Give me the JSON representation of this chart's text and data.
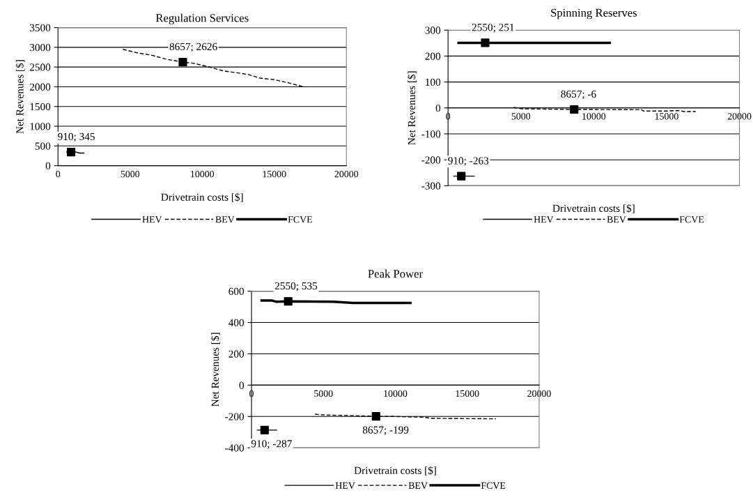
{
  "chart_data": [
    {
      "type": "line",
      "title": "Regulation Services",
      "xlabel": "Drivetrain costs [$]",
      "ylabel": "Net Revenues [$]",
      "xlim": [
        0,
        20000
      ],
      "xticks": [
        0,
        5000,
        10000,
        15000,
        20000
      ],
      "ylim": [
        0,
        3500
      ],
      "yticks": [
        0,
        500,
        1000,
        1500,
        2000,
        2500,
        3000,
        3500
      ],
      "grid": "y",
      "legend": "bottom",
      "series": [
        {
          "name": "HEV",
          "color": "#000000",
          "line_style": "solid",
          "x": [
            600,
            910,
            1200,
            1500,
            1800
          ],
          "values": [
            345,
            345,
            350,
            320,
            320
          ]
        },
        {
          "name": "BEV",
          "color": "#000000",
          "line_style": "dashed",
          "x": [
            4500,
            5500,
            6500,
            7500,
            8657,
            9500,
            10500,
            11500,
            12500,
            13200,
            14000,
            15000,
            16000,
            17000
          ],
          "values": [
            2950,
            2860,
            2800,
            2700,
            2626,
            2590,
            2500,
            2400,
            2350,
            2310,
            2220,
            2180,
            2100,
            2000
          ]
        },
        {
          "name": "FCVE",
          "color": "#000000",
          "line_style": "solid"
        },
        {
          "type": "scatter",
          "marker": "square",
          "color": "#000000",
          "x": [
            910,
            8657
          ],
          "values": [
            345,
            2626
          ]
        }
      ],
      "annotations": [
        {
          "text": "910; 345",
          "x": 910,
          "y": 345
        },
        {
          "text": "8657; 2626",
          "x": 8657,
          "y": 2626
        }
      ]
    },
    {
      "type": "line",
      "title": "Spinning Reserves",
      "xlabel": "Drivetrain costs [$]",
      "ylabel": "Net Revenues [$]",
      "xlim": [
        0,
        20000
      ],
      "xticks": [
        0,
        5000,
        10000,
        15000,
        20000
      ],
      "ylim": [
        -300,
        300
      ],
      "yticks": [
        -300,
        -200,
        -100,
        0,
        100,
        200,
        300
      ],
      "grid": "y",
      "legend": "bottom",
      "series": [
        {
          "name": "HEV",
          "color": "#000000",
          "line_style": "solid",
          "x": [
            400,
            910,
            1800
          ],
          "values": [
            -263,
            -263,
            -263
          ]
        },
        {
          "name": "BEV",
          "color": "#000000",
          "line_style": "dashed",
          "x": [
            4500,
            5000,
            8657,
            10000,
            13300,
            13400,
            15000,
            15800,
            16200,
            17000
          ],
          "values": [
            2,
            -3,
            -6,
            -6,
            -7,
            -12,
            -12,
            -10,
            -14,
            -14
          ]
        },
        {
          "name": "FCVE",
          "color": "#000000",
          "line_style": "solid",
          "x": [
            720,
            2550,
            11100
          ],
          "values": [
            251,
            251,
            251
          ]
        },
        {
          "type": "scatter",
          "marker": "square",
          "color": "#000000",
          "x": [
            910,
            2550,
            8657
          ],
          "values": [
            -263,
            251,
            -6
          ]
        }
      ],
      "annotations": [
        {
          "text": "910; -263",
          "x": 910,
          "y": -263
        },
        {
          "text": "2550; 251",
          "x": 2550,
          "y": 251
        },
        {
          "text": "8657; -6",
          "x": 8657,
          "y": -6
        }
      ]
    },
    {
      "type": "line",
      "title": "Peak Power",
      "xlabel": "Drivetrain costs [$]",
      "ylabel": "Net Revenues [$]",
      "xlim": [
        0,
        20000
      ],
      "xticks": [
        0,
        5000,
        10000,
        15000,
        20000
      ],
      "ylim": [
        -400,
        600
      ],
      "yticks": [
        -400,
        -200,
        0,
        200,
        400,
        600
      ],
      "grid": "y",
      "legend": "bottom",
      "series": [
        {
          "name": "HEV",
          "color": "#000000",
          "line_style": "solid",
          "x": [
            400,
            910,
            1750
          ],
          "values": [
            -287,
            -287,
            -287
          ]
        },
        {
          "name": "BEV",
          "color": "#000000",
          "line_style": "dashed",
          "x": [
            4420,
            4900,
            8657,
            10000,
            12000,
            12500,
            17000
          ],
          "values": [
            -185,
            -190,
            -199,
            -200,
            -205,
            -212,
            -215
          ]
        },
        {
          "name": "FCVE",
          "color": "#000000",
          "line_style": "solid",
          "x": [
            700,
            1440,
            1700,
            2550,
            5680,
            7060,
            11050
          ],
          "values": [
            540,
            540,
            533,
            535,
            533,
            525,
            525
          ]
        },
        {
          "type": "scatter",
          "marker": "square",
          "color": "#000000",
          "x": [
            910,
            2550,
            8657
          ],
          "values": [
            -287,
            535,
            -199
          ]
        }
      ],
      "annotations": [
        {
          "text": "910; -287",
          "x": 910,
          "y": -287
        },
        {
          "text": "2550; 535",
          "x": 2550,
          "y": 535
        },
        {
          "text": "8657; -199",
          "x": 8657,
          "y": -199
        }
      ]
    }
  ]
}
